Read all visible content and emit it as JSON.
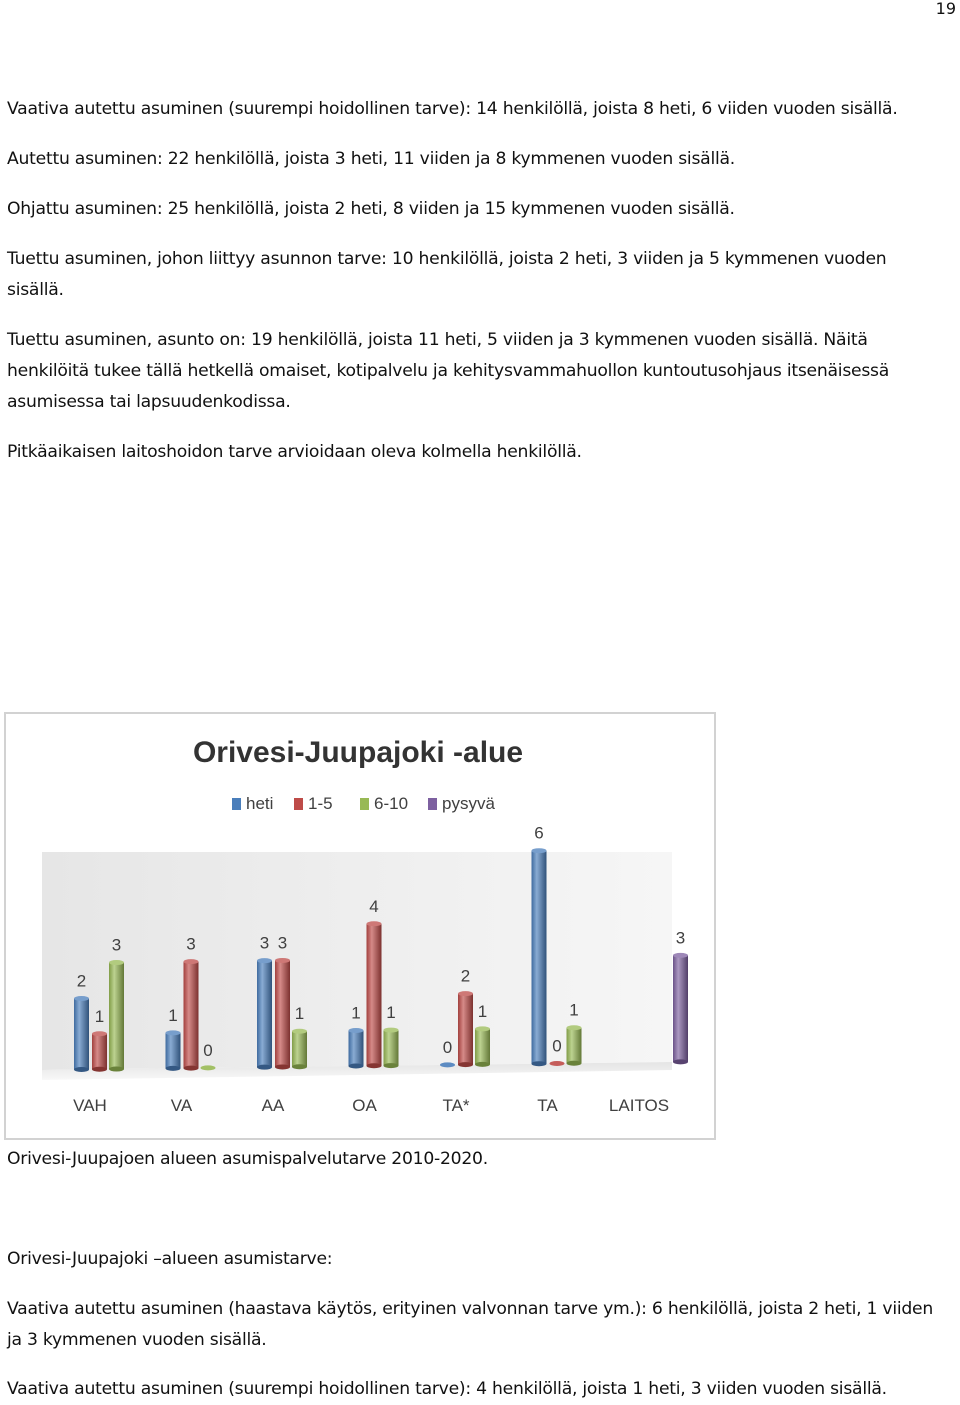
{
  "page_number": "19",
  "paragraphs_top": [
    "Vaativa autettu asuminen (suurempi hoidollinen tarve): 14 henkilöllä, joista 8 heti, 6 viiden vuoden sisällä.",
    "Autettu asuminen: 22 henkilöllä, joista 3 heti, 11 viiden ja 8 kymmenen vuoden sisällä.",
    "Ohjattu asuminen: 25 henkilöllä, joista 2 heti, 8 viiden ja 15 kymmenen vuoden sisällä.",
    "Tuettu asuminen, johon liittyy asunnon tarve: 10 henkilöllä, joista 2 heti, 3 viiden ja 5 kymmenen vuoden sisällä.",
    "Tuettu asuminen, asunto on: 19 henkilöllä, joista 11 heti, 5 viiden ja 3 kymmenen vuoden sisällä. Näitä henkilöitä tukee tällä hetkellä omaiset, kotipalvelu ja kehitysvammahuollon kuntoutusohjaus itsenäisessä asumisessa tai lapsuudenkodissa.",
    "Pitkäaikaisen laitoshoidon tarve arvioidaan oleva kolmella henkilöllä."
  ],
  "caption": "Orivesi-Juupajoen alueen asumispalvelutarve 2010-2020.",
  "paragraphs_bottom": [
    "Orivesi-Juupajoki –alueen asumistarve:",
    "Vaativa autettu asuminen (haastava käytös, erityinen valvonnan tarve ym.): 6 henkilöllä, joista 2 heti, 1 viiden ja 3 kymmenen vuoden sisällä.",
    "Vaativa autettu asuminen (suurempi hoidollinen tarve): 4 henkilöllä, joista 1 heti, 3 viiden vuoden sisällä."
  ],
  "chart_data": {
    "type": "bar",
    "style": "3d-cylinder",
    "title": "Orivesi-Juupajoki -alue",
    "legend_position": "top",
    "grid": false,
    "ylim": [
      0,
      6
    ],
    "categories": [
      "VAH",
      "VA",
      "AA",
      "OA",
      "TA*",
      "TA",
      "LAITOS"
    ],
    "series": [
      {
        "name": "heti",
        "color": "#4a7ebb",
        "values": [
          2,
          1,
          3,
          1,
          0,
          6,
          null
        ]
      },
      {
        "name": "1-5",
        "color": "#be4b48",
        "values": [
          1,
          3,
          3,
          4,
          2,
          0,
          null
        ]
      },
      {
        "name": "6-10",
        "color": "#98b954",
        "values": [
          3,
          0,
          1,
          1,
          1,
          1,
          null
        ]
      },
      {
        "name": "pysyvä",
        "color": "#7d60a0",
        "values": [
          null,
          null,
          null,
          null,
          null,
          null,
          3
        ]
      }
    ]
  }
}
